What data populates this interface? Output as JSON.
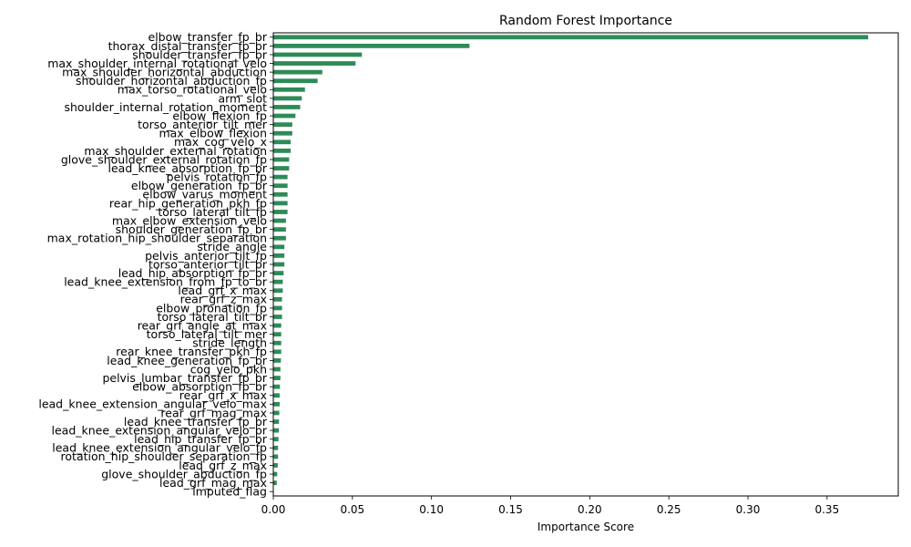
{
  "chart_data": {
    "type": "bar",
    "orientation": "horizontal",
    "title": "Random Forest Importance",
    "xlabel": "Importance Score",
    "ylabel": "",
    "xlim": [
      0,
      0.395
    ],
    "xticks": [
      0.0,
      0.05,
      0.1,
      0.15,
      0.2,
      0.25,
      0.3,
      0.35
    ],
    "xtick_labels": [
      "0.00",
      "0.05",
      "0.10",
      "0.15",
      "0.20",
      "0.25",
      "0.30",
      "0.35"
    ],
    "grid": false,
    "bar_color": "#2e8b57",
    "categories": [
      "elbow_transfer_fp_br",
      "thorax_distal_transfer_fp_br",
      "shoulder_transfer_fp_br",
      "max_shoulder_internal_rotational_velo",
      "max_shoulder_horizontal_abduction",
      "shoulder_horizontal_abduction_fp",
      "max_torso_rotational_velo",
      "arm_slot",
      "shoulder_internal_rotation_moment",
      "elbow_flexion_fp",
      "torso_anterior_tilt_mer",
      "max_elbow_flexion",
      "max_cog_velo_x",
      "max_shoulder_external_rotation",
      "glove_shoulder_external_rotation_fp",
      "lead_knee_absorption_fp_br",
      "pelvis_rotation_fp",
      "elbow_generation_fp_br",
      "elbow_varus_moment",
      "rear_hip_generation_pkh_fp",
      "torso_lateral_tilt_fp",
      "max_elbow_extension_velo",
      "shoulder_generation_fp_br",
      "max_rotation_hip_shoulder_separation",
      "stride_angle",
      "pelvis_anterior_tilt_fp",
      "torso_anterior_tilt_br",
      "lead_hip_absorption_fp_br",
      "lead_knee_extension_from_fp_to_br",
      "lead_grf_x_max",
      "rear_grf_z_max",
      "elbow_pronation_fp",
      "torso_lateral_tilt_br",
      "rear_grf_angle_at_max",
      "torso_lateral_tilt_mer",
      "stride_length",
      "rear_knee_transfer_pkh_fp",
      "lead_knee_generation_fp_br",
      "cog_velo_pkh",
      "pelvis_lumbar_transfer_fp_br",
      "elbow_absorption_fp_br",
      "rear_grf_x_max",
      "lead_knee_extension_angular_velo_max",
      "rear_grf_mag_max",
      "lead_knee_transfer_fp_br",
      "lead_knee_extension_angular_velo_br",
      "lead_hip_transfer_fp_br",
      "lead_knee_extension_angular_velo_fp",
      "rotation_hip_shoulder_separation_fp",
      "lead_grf_z_max",
      "glove_shoulder_abduction_fp",
      "lead_grf_mag_max",
      "imputed_flag"
    ],
    "values": [
      0.376,
      0.124,
      0.056,
      0.052,
      0.031,
      0.028,
      0.02,
      0.018,
      0.017,
      0.014,
      0.012,
      0.012,
      0.011,
      0.011,
      0.01,
      0.01,
      0.009,
      0.009,
      0.009,
      0.009,
      0.009,
      0.008,
      0.008,
      0.008,
      0.007,
      0.007,
      0.007,
      0.0065,
      0.006,
      0.006,
      0.0055,
      0.0055,
      0.0055,
      0.005,
      0.005,
      0.005,
      0.005,
      0.0048,
      0.0045,
      0.0045,
      0.0042,
      0.004,
      0.004,
      0.0038,
      0.0036,
      0.0035,
      0.0033,
      0.003,
      0.003,
      0.0028,
      0.0025,
      0.0022,
      0.0
    ]
  }
}
